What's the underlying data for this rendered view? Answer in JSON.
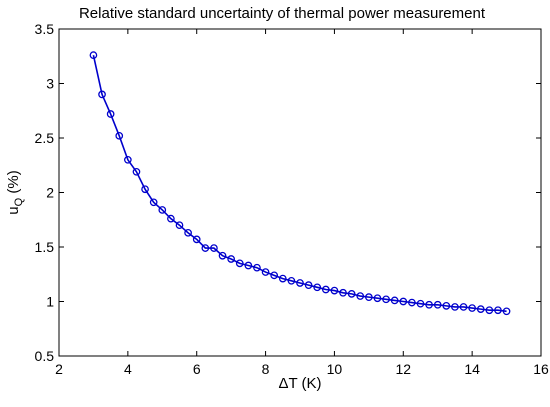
{
  "chart_data": {
    "type": "line",
    "title": "Relative standard uncertainty of thermal power measurement",
    "xlabel": "ΔT (K)",
    "ylabel_main": "u",
    "ylabel_sub": "Q",
    "ylabel_unit": " (%)",
    "xlim": [
      2,
      16
    ],
    "ylim": [
      0.5,
      3.5
    ],
    "xticks": [
      2,
      4,
      6,
      8,
      10,
      12,
      14,
      16
    ],
    "yticks": [
      0.5,
      1,
      1.5,
      2,
      2.5,
      3,
      3.5
    ],
    "grid": false,
    "legend": "none",
    "series": [
      {
        "color": "#0000cc",
        "marker": "circle",
        "points": [
          [
            3.0,
            3.26
          ],
          [
            3.25,
            2.9
          ],
          [
            3.5,
            2.72
          ],
          [
            3.75,
            2.52
          ],
          [
            4.0,
            2.3
          ],
          [
            4.25,
            2.19
          ],
          [
            4.5,
            2.03
          ],
          [
            4.75,
            1.91
          ],
          [
            5.0,
            1.84
          ],
          [
            5.25,
            1.76
          ],
          [
            5.5,
            1.7
          ],
          [
            5.75,
            1.63
          ],
          [
            6.0,
            1.57
          ],
          [
            6.25,
            1.49
          ],
          [
            6.5,
            1.49
          ],
          [
            6.75,
            1.42
          ],
          [
            7.0,
            1.39
          ],
          [
            7.25,
            1.35
          ],
          [
            7.5,
            1.33
          ],
          [
            7.75,
            1.31
          ],
          [
            8.0,
            1.27
          ],
          [
            8.25,
            1.24
          ],
          [
            8.5,
            1.21
          ],
          [
            8.75,
            1.19
          ],
          [
            9.0,
            1.17
          ],
          [
            9.25,
            1.15
          ],
          [
            9.5,
            1.13
          ],
          [
            9.75,
            1.11
          ],
          [
            10.0,
            1.1
          ],
          [
            10.25,
            1.08
          ],
          [
            10.5,
            1.07
          ],
          [
            10.75,
            1.05
          ],
          [
            11.0,
            1.04
          ],
          [
            11.25,
            1.03
          ],
          [
            11.5,
            1.02
          ],
          [
            11.75,
            1.01
          ],
          [
            12.0,
            1.0
          ],
          [
            12.25,
            0.99
          ],
          [
            12.5,
            0.98
          ],
          [
            12.75,
            0.97
          ],
          [
            13.0,
            0.97
          ],
          [
            13.25,
            0.96
          ],
          [
            13.5,
            0.95
          ],
          [
            13.75,
            0.95
          ],
          [
            14.0,
            0.94
          ],
          [
            14.25,
            0.93
          ],
          [
            14.5,
            0.92
          ],
          [
            14.75,
            0.92
          ],
          [
            15.0,
            0.91
          ]
        ]
      }
    ]
  }
}
